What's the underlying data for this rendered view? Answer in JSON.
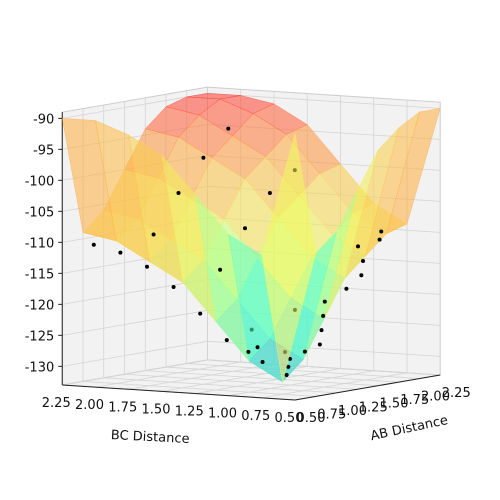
{
  "chart_data": {
    "type": "surface3d",
    "xlabel": "AB Distance",
    "ylabel": "BC Distance",
    "xlim": [
      0.5,
      2.25
    ],
    "ylim": [
      0.5,
      2.25
    ],
    "zlim": [
      -133,
      -89
    ],
    "xticks": [
      {
        "value": 0.5,
        "label": "0.50"
      },
      {
        "value": 0.75,
        "label": "0.75"
      },
      {
        "value": 1.0,
        "label": "1.00"
      },
      {
        "value": 1.25,
        "label": "1.25"
      },
      {
        "value": 1.5,
        "label": "1.50"
      },
      {
        "value": 1.75,
        "label": "1.75"
      },
      {
        "value": 2.0,
        "label": "2.00"
      },
      {
        "value": 2.25,
        "label": "2.25"
      }
    ],
    "yticks": [
      {
        "value": 0.5,
        "label": "0.50"
      },
      {
        "value": 0.75,
        "label": "0.75"
      },
      {
        "value": 1.0,
        "label": "1.00"
      },
      {
        "value": 1.25,
        "label": "1.25"
      },
      {
        "value": 1.5,
        "label": "1.50"
      },
      {
        "value": 1.75,
        "label": "1.75"
      },
      {
        "value": 2.0,
        "label": "2.00"
      },
      {
        "value": 2.25,
        "label": "2.25"
      }
    ],
    "zticks": [
      -90,
      -95,
      -100,
      -105,
      -110,
      -115,
      -120,
      -125,
      -130
    ],
    "grid": true,
    "colormap": [
      "#2b2bff",
      "#2bffe0",
      "#f0ff5a",
      "#ffb040",
      "#ff3030"
    ],
    "surface": {
      "x": [
        0.5,
        0.75,
        1.0,
        1.25,
        1.5,
        1.75,
        2.0,
        2.25
      ],
      "y": [
        0.5,
        0.75,
        1.0,
        1.25,
        1.5,
        1.75,
        2.0,
        2.25
      ],
      "z": [
        [
          -90,
          -110,
          -107,
          -101,
          -95,
          -92,
          -90,
          -90
        ],
        [
          -110,
          -131,
          -128,
          -122,
          -116,
          -113,
          -110,
          -109
        ],
        [
          -107,
          -128,
          -125,
          -119,
          -113,
          -110,
          -107,
          -106
        ],
        [
          -101,
          -122,
          -119,
          -113,
          -107,
          -104,
          -101,
          -100
        ],
        [
          -95,
          -116,
          -113,
          -107,
          -101,
          -98,
          -95,
          -94
        ],
        [
          -92,
          -113,
          -110,
          -104,
          -98,
          -95,
          -92,
          -91
        ],
        [
          -90,
          -110,
          -107,
          -101,
          -95,
          -92,
          -90,
          -90
        ],
        [
          -90,
          -109,
          -106,
          -100,
          -94,
          -91,
          -90,
          -90
        ]
      ]
    },
    "points": {
      "color": "#000000",
      "x": [
        0.7,
        0.8,
        0.9,
        0.75,
        0.85,
        1.0,
        1.1,
        1.2,
        1.3,
        1.4,
        1.5,
        1.6,
        1.7,
        1.8,
        1.9,
        2.0,
        2.1,
        0.8,
        0.8,
        0.8,
        0.8,
        0.8,
        0.8,
        1.2,
        1.5,
        1.8,
        2.1,
        1.2,
        1.5,
        1.8,
        2.1,
        0.9,
        1.1,
        1.3
      ],
      "y": [
        0.7,
        0.75,
        0.8,
        0.9,
        1.0,
        0.85,
        0.8,
        0.75,
        0.8,
        0.85,
        0.9,
        0.8,
        0.75,
        0.8,
        0.9,
        0.8,
        0.85,
        1.2,
        1.4,
        1.6,
        1.8,
        2.0,
        2.2,
        1.5,
        1.5,
        1.5,
        1.5,
        2.0,
        2.0,
        2.0,
        2.0,
        1.1,
        1.2,
        1.0
      ],
      "z": [
        -126,
        -130,
        -129,
        -128,
        -126,
        -128,
        -127,
        -126,
        -124,
        -122,
        -120,
        -118,
        -116,
        -114,
        -112,
        -111,
        -110,
        -125,
        -121,
        -117,
        -114,
        -112,
        -111,
        -115,
        -109,
        -104,
        -101,
        -110,
        -104,
        -99,
        -95,
        -127,
        -124,
        -121
      ]
    }
  }
}
